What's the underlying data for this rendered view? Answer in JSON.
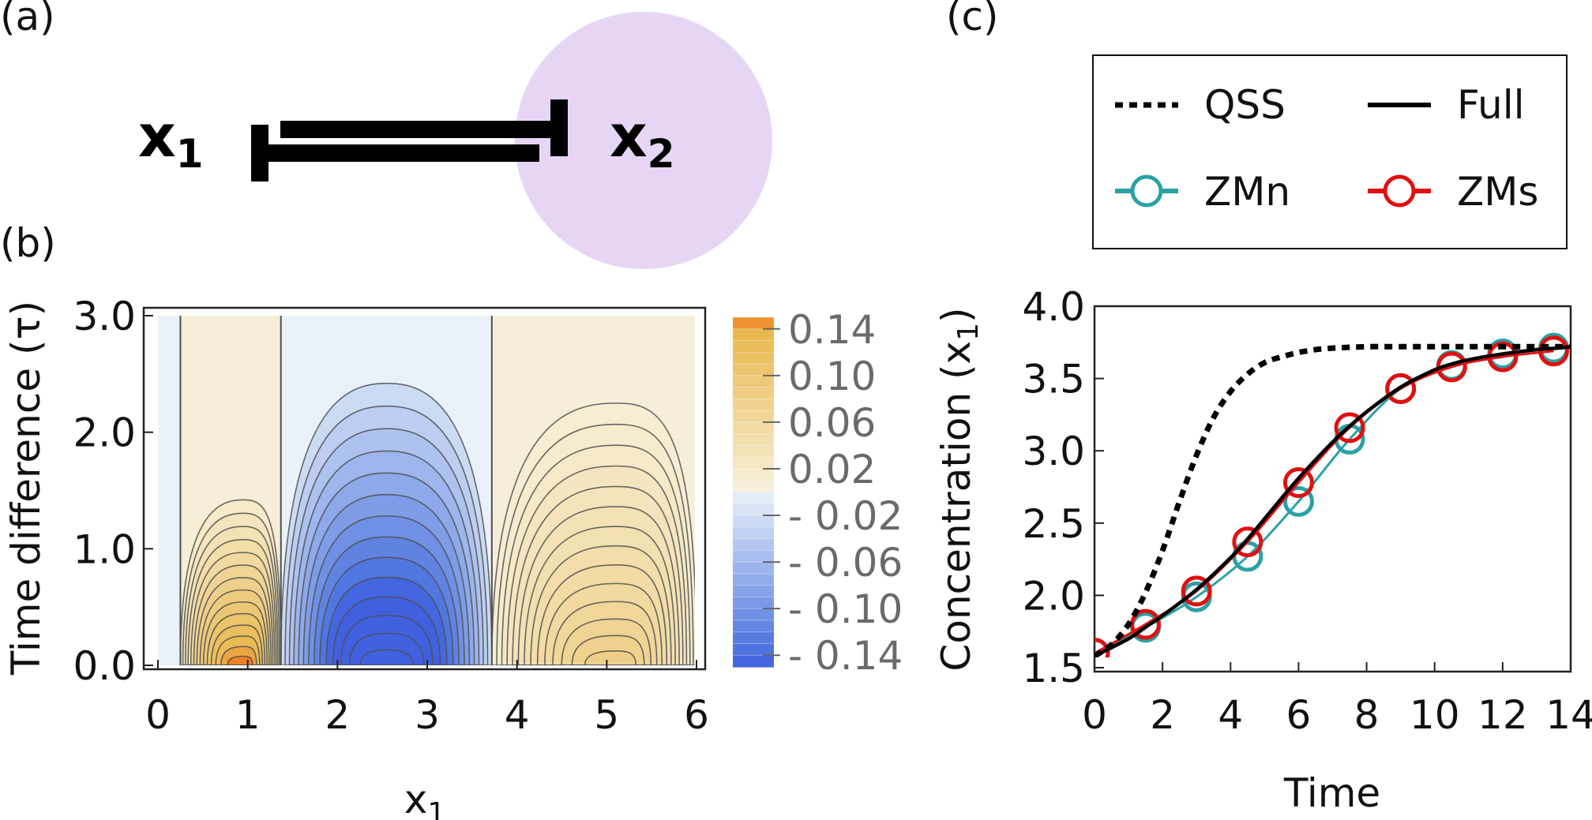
{
  "panels": {
    "a": {
      "label": "(a)",
      "node1": {
        "main": "x",
        "sub": "1"
      },
      "node2": {
        "main": "x",
        "sub": "2"
      }
    },
    "b": {
      "label": "(b)"
    },
    "c": {
      "label": "(c)"
    }
  },
  "colors": {
    "bubble": "#e6d5f5",
    "positive": "#f07f24",
    "negative": "#4060e0",
    "contour": "#505050",
    "qss": "#000000",
    "full": "#000000",
    "zmn": "#2aa1a5",
    "zms": "#e01010"
  },
  "chart_data": [
    {
      "type": "heatmap",
      "title": "",
      "xlabel": {
        "main": "x",
        "sub": "1"
      },
      "ylabel": "Time difference (τ)",
      "xlim": [
        0,
        6
      ],
      "ylim": [
        0,
        3
      ],
      "x_ticks": [
        "0",
        "1",
        "2",
        "3",
        "4",
        "5",
        "6"
      ],
      "y_ticks": [
        "0.0",
        "1.0",
        "2.0",
        "3.0"
      ],
      "zero_contour_x": [
        0.25,
        1.37,
        3.72
      ],
      "regions": [
        {
          "x_range": [
            0,
            0.25
          ],
          "sign": "negative"
        },
        {
          "x_range": [
            0.25,
            1.37
          ],
          "sign": "positive",
          "peak_x": 0.95,
          "peak_value": 0.15,
          "extent_tau": 1.42
        },
        {
          "x_range": [
            1.37,
            3.72
          ],
          "sign": "negative",
          "peak_x": 2.55,
          "peak_value": -0.2,
          "extent_tau": 2.42
        },
        {
          "x_range": [
            3.72,
            6
          ],
          "sign": "positive",
          "peak_x": 5.1,
          "peak_value": 0.08,
          "extent_tau": 2.25
        }
      ],
      "colorbar": {
        "range": [
          -0.15,
          0.15
        ],
        "tick_labels": [
          "0.14",
          "0.10",
          "0.06",
          "0.02",
          "- 0.02",
          "- 0.06",
          "- 0.10",
          "- 0.14"
        ],
        "tick_values": [
          0.14,
          0.1,
          0.06,
          0.02,
          -0.02,
          -0.06,
          -0.1,
          -0.14
        ]
      }
    },
    {
      "type": "line",
      "title": "",
      "xlabel": "Time",
      "ylabel": {
        "main": "Concentration (x",
        "sub": "1",
        "tail": ")"
      },
      "xlim": [
        0,
        14
      ],
      "ylim": [
        1.5,
        4.0
      ],
      "x_ticks": [
        "0",
        "2",
        "4",
        "6",
        "8",
        "10",
        "12",
        "14"
      ],
      "y_ticks": [
        "1.5",
        "2.0",
        "2.5",
        "3.0",
        "3.5",
        "4.0"
      ],
      "legend": {
        "position": "top",
        "entries": [
          "QSS",
          "Full",
          "ZMn",
          "ZMs"
        ]
      },
      "series": [
        {
          "name": "QSS",
          "style": "dashed",
          "x": [
            0,
            0.5,
            1,
            1.5,
            2,
            2.5,
            3,
            3.5,
            4,
            4.5,
            5,
            5.5,
            6,
            6.5,
            7,
            8,
            9,
            10,
            11,
            12,
            13,
            14
          ],
          "y": [
            1.58,
            1.66,
            1.8,
            2.02,
            2.31,
            2.65,
            2.97,
            3.23,
            3.41,
            3.53,
            3.61,
            3.65,
            3.68,
            3.7,
            3.71,
            3.72,
            3.72,
            3.72,
            3.72,
            3.72,
            3.72,
            3.72
          ]
        },
        {
          "name": "Full",
          "style": "solid",
          "x": [
            0,
            1,
            1.5,
            2,
            3,
            4,
            4.5,
            5,
            6,
            7,
            7.5,
            8,
            9,
            10,
            10.5,
            11,
            12,
            13,
            13.6,
            14
          ],
          "y": [
            1.58,
            1.7,
            1.78,
            1.86,
            2.04,
            2.26,
            2.39,
            2.53,
            2.81,
            3.06,
            3.17,
            3.27,
            3.44,
            3.56,
            3.6,
            3.63,
            3.67,
            3.7,
            3.71,
            3.72
          ]
        },
        {
          "name": "ZMn",
          "style": "solid-markers",
          "x": [
            0,
            1.5,
            3,
            4.5,
            6,
            7.5,
            9,
            10.5,
            12,
            13.5
          ],
          "y": [
            1.6,
            1.78,
            1.99,
            2.27,
            2.65,
            3.08,
            3.43,
            3.59,
            3.67,
            3.71
          ]
        },
        {
          "name": "ZMs",
          "style": "solid-markers",
          "x": [
            0,
            1.5,
            3,
            4.5,
            6,
            7.5,
            9,
            10.5,
            12,
            13.5
          ],
          "y": [
            1.6,
            1.8,
            2.03,
            2.37,
            2.78,
            3.16,
            3.43,
            3.58,
            3.65,
            3.69
          ]
        }
      ]
    }
  ]
}
